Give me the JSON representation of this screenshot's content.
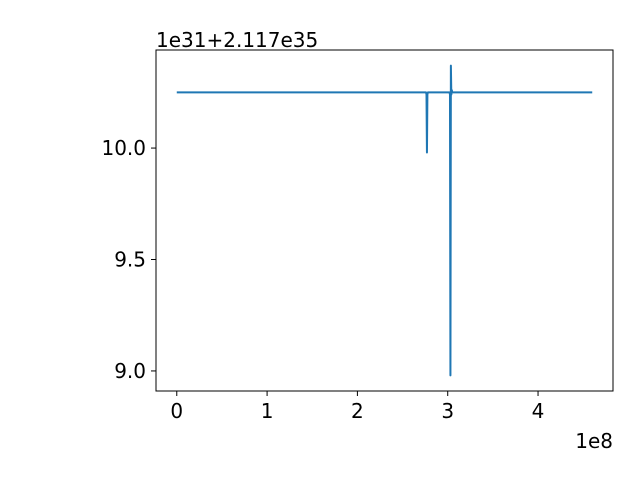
{
  "chart_data": {
    "type": "line",
    "title": "",
    "xlabel": "",
    "ylabel": "",
    "x_offset_text": "1e8",
    "y_offset_text": "1e31+2.117e35",
    "xlim": [
      -0.23,
      4.83
    ],
    "ylim": [
      8.91,
      10.44
    ],
    "x_ticks": [
      {
        "value": 0,
        "label": "0"
      },
      {
        "value": 1,
        "label": "1"
      },
      {
        "value": 2,
        "label": "2"
      },
      {
        "value": 3,
        "label": "3"
      },
      {
        "value": 4,
        "label": "4"
      }
    ],
    "y_ticks": [
      {
        "value": 9.0,
        "label": "9.0"
      },
      {
        "value": 9.5,
        "label": "9.5"
      },
      {
        "value": 10.0,
        "label": "10.0"
      }
    ],
    "grid": false,
    "series": [
      {
        "color": "#1f77b4",
        "x": [
          0.0,
          0.5,
          1.0,
          1.5,
          2.0,
          2.5,
          2.76,
          2.765,
          2.77,
          2.775,
          2.78,
          2.9,
          3.02,
          3.025,
          3.03,
          3.035,
          3.04,
          3.045,
          3.05,
          3.5,
          4.0,
          4.6
        ],
        "y": [
          10.25,
          10.25,
          10.25,
          10.25,
          10.25,
          10.25,
          10.25,
          10.24,
          9.98,
          10.24,
          10.25,
          10.25,
          10.25,
          10.24,
          8.98,
          10.37,
          10.24,
          10.26,
          10.25,
          10.25,
          10.25,
          10.25
        ]
      }
    ]
  }
}
